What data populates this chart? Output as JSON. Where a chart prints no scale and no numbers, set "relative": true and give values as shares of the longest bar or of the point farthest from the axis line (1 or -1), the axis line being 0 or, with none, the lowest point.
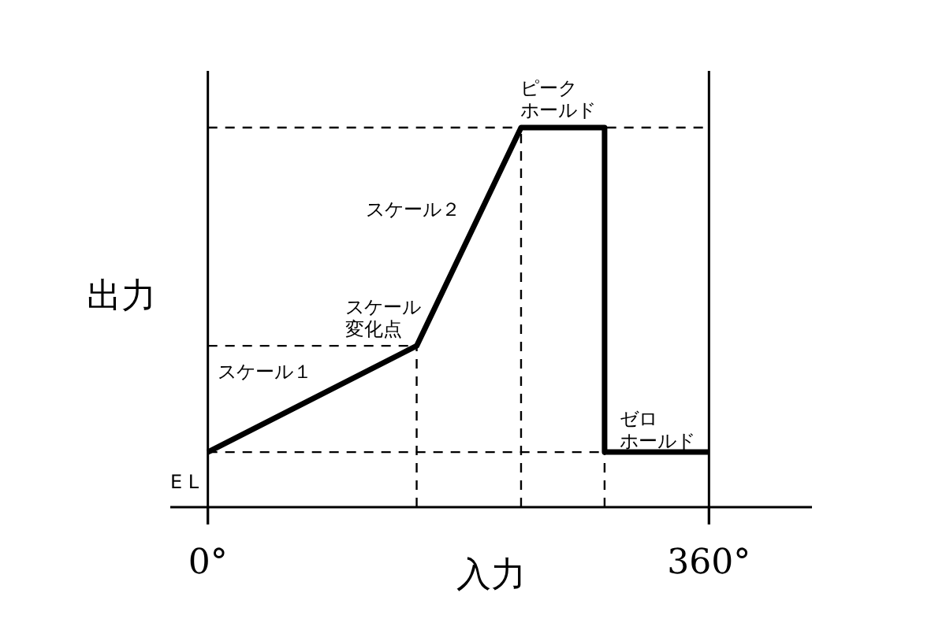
{
  "chart_data": {
    "type": "line",
    "relative": true,
    "xlabel": "入力",
    "ylabel": "出力",
    "xlim": [
      -27,
      434
    ],
    "xticks": [
      {
        "value": 0,
        "label": "0°"
      },
      {
        "value": 360,
        "label": "360°"
      }
    ],
    "series": [
      {
        "type": "line",
        "color": "#000000",
        "line_style": "solid",
        "x": [
          0,
          150,
          225,
          285,
          285,
          360
        ],
        "values": [
          0.145,
          0.425,
          1,
          1,
          0.145,
          0.145
        ]
      },
      {
        "type": "line",
        "color": "#000000",
        "line_style": "dashed",
        "x": [
          0,
          150
        ],
        "values": [
          0.425,
          0.425
        ]
      },
      {
        "type": "line",
        "color": "#000000",
        "line_style": "dashed",
        "x": [
          150,
          150
        ],
        "values": [
          0,
          0.425
        ]
      },
      {
        "type": "line",
        "color": "#000000",
        "line_style": "dashed",
        "x": [
          225,
          225
        ],
        "values": [
          0,
          1
        ]
      },
      {
        "type": "line",
        "color": "#000000",
        "line_style": "dashed",
        "x": [
          285,
          285
        ],
        "values": [
          0,
          0.145
        ]
      }
    ],
    "ref_lines": [
      {
        "axis": "y",
        "value": 0.145,
        "label": "E L",
        "line_style": "dashed"
      },
      {
        "axis": "y",
        "value": 1,
        "line_style": "dashed"
      },
      {
        "axis": "x",
        "value": 360,
        "line_style": "solid"
      }
    ],
    "annotations": [
      "スケール１",
      "スケール２",
      "スケール変化点",
      "ピークホールド",
      "ゼロホールド"
    ]
  }
}
